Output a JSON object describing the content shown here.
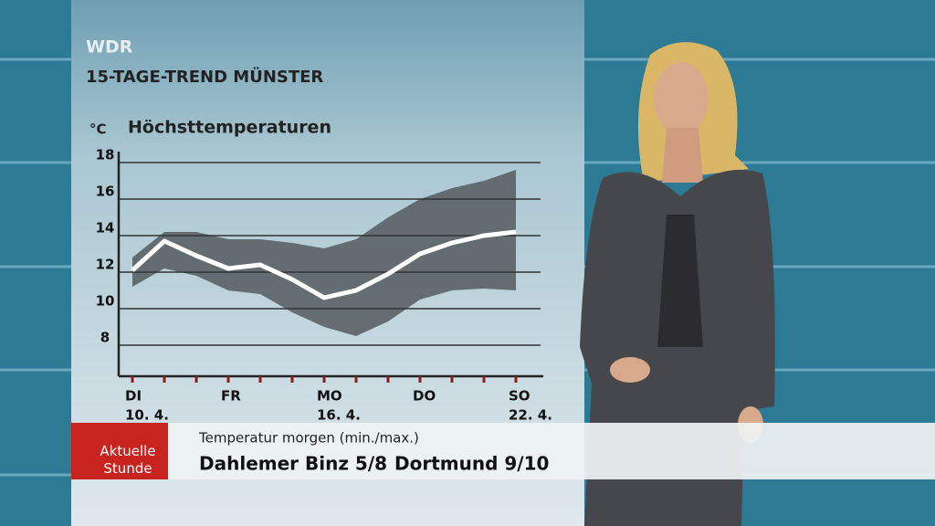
{
  "header": {
    "logo": "WDR",
    "title": "15-TAGE-TREND MÜNSTER"
  },
  "chart_data": {
    "type": "line",
    "title": "Höchsttemperaturen",
    "y_unit": "°C",
    "categories": [
      "DI",
      null,
      null,
      "FR",
      null,
      null,
      "MO",
      null,
      null,
      "DO",
      null,
      null,
      "SO"
    ],
    "category_dates": [
      "10. 4.",
      null,
      null,
      null,
      null,
      null,
      "16. 4.",
      null,
      null,
      null,
      null,
      null,
      "22. 4."
    ],
    "values": [
      12.1,
      13.7,
      12.9,
      12.2,
      12.4,
      11.6,
      10.6,
      11.0,
      11.9,
      13.0,
      13.6,
      14.0,
      14.2
    ],
    "color": "#ffffff",
    "band": {
      "high": [
        12.8,
        14.2,
        14.2,
        13.8,
        13.8,
        13.6,
        13.3,
        13.8,
        15.0,
        16.0,
        16.6,
        17.0,
        17.6
      ],
      "low": [
        11.2,
        12.2,
        11.8,
        11.0,
        10.8,
        9.8,
        9.0,
        8.5,
        9.3,
        10.5,
        11.0,
        11.1,
        11.0
      ],
      "color": "#555b5e"
    },
    "ylim": [
      6.3,
      18.6
    ],
    "yticks": [
      8,
      10,
      12,
      14,
      16,
      18
    ],
    "grid": true
  },
  "ticker": {
    "logo_line1": "Aktuelle",
    "logo_line2": "Stunde",
    "heading": "Temperatur morgen (min./max.)",
    "items": [
      "Dahlemer Binz 5/8",
      "Dortmund 9/10"
    ]
  }
}
